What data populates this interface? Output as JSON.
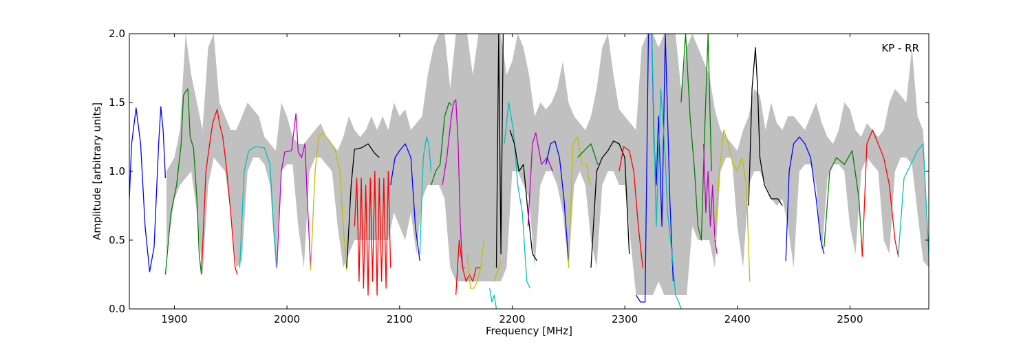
{
  "chart_data": {
    "type": "line",
    "annotation": "KP - RR",
    "xlabel": "Frequency [MHz]",
    "ylabel": "Amplitude [arbitrary units]",
    "xlim": [
      1860,
      2570
    ],
    "ylim": [
      0.0,
      2.0
    ],
    "xticks": [
      1900,
      2000,
      2100,
      2200,
      2300,
      2400,
      2500
    ],
    "xtick_labels": [
      "1900",
      "2000",
      "2100",
      "2200",
      "2300",
      "2400",
      "2500"
    ],
    "yticks": [
      0.0,
      0.5,
      1.0,
      1.5,
      2.0
    ],
    "ytick_labels": [
      "0.0",
      "0.5",
      "1.0",
      "1.5",
      "2.0"
    ],
    "grid": false,
    "envelope_color": "#c0c0c0",
    "envelope": {
      "x": [
        1893,
        1900,
        1905,
        1910,
        1915,
        1920,
        1925,
        1930,
        1935,
        1940,
        1945,
        1950,
        1955,
        1960,
        1965,
        1970,
        1975,
        1980,
        1985,
        1990,
        1995,
        2000,
        2005,
        2010,
        2015,
        2020,
        2025,
        2030,
        2035,
        2040,
        2045,
        2050,
        2055,
        2060,
        2065,
        2070,
        2075,
        2080,
        2085,
        2090,
        2095,
        2100,
        2105,
        2110,
        2115,
        2120,
        2125,
        2130,
        2135,
        2140,
        2145,
        2150,
        2155,
        2160,
        2165,
        2170,
        2175,
        2180,
        2185,
        2190,
        2195,
        2200,
        2205,
        2210,
        2215,
        2220,
        2225,
        2230,
        2235,
        2240,
        2245,
        2250,
        2255,
        2260,
        2265,
        2270,
        2275,
        2280,
        2285,
        2290,
        2295,
        2300,
        2305,
        2310,
        2315,
        2320,
        2325,
        2330,
        2335,
        2340,
        2345,
        2350,
        2355,
        2360,
        2365,
        2370,
        2375,
        2380,
        2385,
        2390,
        2395,
        2400,
        2405,
        2410,
        2415,
        2420,
        2425,
        2430,
        2435,
        2440,
        2445,
        2450,
        2455,
        2460,
        2465,
        2470,
        2475,
        2480,
        2485,
        2490,
        2495,
        2500,
        2505,
        2510,
        2515,
        2520,
        2525,
        2530,
        2535,
        2540,
        2545,
        2550,
        2555,
        2560,
        2565,
        2570
      ],
      "upper": [
        1.0,
        1.1,
        1.3,
        2.0,
        1.7,
        1.5,
        1.3,
        1.9,
        2.0,
        1.5,
        1.4,
        1.3,
        1.3,
        1.4,
        1.5,
        1.45,
        1.4,
        1.25,
        1.2,
        1.15,
        1.5,
        1.4,
        1.25,
        1.2,
        1.2,
        1.25,
        1.3,
        1.35,
        1.25,
        1.2,
        1.15,
        1.25,
        1.4,
        1.3,
        1.25,
        1.3,
        1.4,
        1.3,
        1.4,
        1.3,
        1.5,
        1.4,
        1.45,
        1.3,
        1.35,
        1.4,
        1.7,
        1.9,
        2.0,
        2.0,
        1.6,
        2.0,
        2.0,
        2.0,
        1.7,
        2.0,
        2.0,
        2.0,
        2.0,
        2.0,
        1.7,
        1.8,
        2.0,
        1.9,
        1.7,
        1.4,
        1.5,
        1.45,
        1.5,
        1.6,
        1.8,
        1.5,
        1.4,
        1.35,
        1.3,
        1.4,
        1.6,
        1.9,
        2.0,
        1.7,
        1.45,
        1.4,
        1.35,
        1.3,
        1.9,
        2.0,
        2.0,
        1.9,
        2.0,
        2.0,
        2.0,
        1.6,
        1.9,
        2.0,
        1.9,
        1.8,
        1.7,
        1.45,
        1.3,
        1.25,
        1.2,
        1.15,
        1.3,
        1.4,
        1.6,
        1.55,
        1.3,
        1.5,
        1.35,
        1.3,
        1.4,
        1.4,
        1.35,
        1.3,
        1.4,
        1.5,
        1.35,
        1.25,
        1.2,
        1.3,
        1.5,
        1.45,
        1.3,
        1.25,
        1.35,
        1.3,
        1.25,
        1.3,
        1.5,
        1.6,
        1.55,
        1.5,
        1.9,
        1.4,
        1.3,
        0.4
      ],
      "lower": [
        0.4,
        0.8,
        0.9,
        0.95,
        1.0,
        0.7,
        0.25,
        0.9,
        1.1,
        1.05,
        1.0,
        0.7,
        0.3,
        0.35,
        1.0,
        1.1,
        1.1,
        1.05,
        0.9,
        0.3,
        1.0,
        1.05,
        1.05,
        0.6,
        0.3,
        1.0,
        1.1,
        1.1,
        1.05,
        1.0,
        0.6,
        0.3,
        0.4,
        0.5,
        0.5,
        0.5,
        0.5,
        0.5,
        0.5,
        0.5,
        0.7,
        0.6,
        0.5,
        0.7,
        0.4,
        0.8,
        0.9,
        0.9,
        0.9,
        0.8,
        0.3,
        0.2,
        0.2,
        0.2,
        0.2,
        0.2,
        0.2,
        0.2,
        0.2,
        0.2,
        0.3,
        1.0,
        1.0,
        0.9,
        0.8,
        0.3,
        0.9,
        1.0,
        1.0,
        0.9,
        0.7,
        0.3,
        0.9,
        1.0,
        0.9,
        0.5,
        0.3,
        0.9,
        1.0,
        1.0,
        0.9,
        0.9,
        0.5,
        0.1,
        0.1,
        0.1,
        0.1,
        0.2,
        0.1,
        0.1,
        0.1,
        0.1,
        0.1,
        0.6,
        0.5,
        0.5,
        0.5,
        0.3,
        1.0,
        1.1,
        1.1,
        0.6,
        0.3,
        0.9,
        1.0,
        1.0,
        0.9,
        0.8,
        0.75,
        0.8,
        0.6,
        0.3,
        1.0,
        1.05,
        1.05,
        0.9,
        0.4,
        0.95,
        1.05,
        1.05,
        1.0,
        0.6,
        0.4,
        1.0,
        1.1,
        1.05,
        1.0,
        0.5,
        0.4,
        1.0,
        1.1,
        1.1,
        1.05,
        0.7,
        0.35,
        0.3
      ]
    },
    "series": [
      {
        "color": "#0000ff",
        "x": [
          1860,
          1862,
          1866,
          1870,
          1874,
          1878,
          1882,
          1886,
          1888,
          1890,
          1892
        ],
        "y": [
          0.8,
          1.2,
          1.46,
          1.2,
          0.6,
          0.27,
          0.45,
          1.2,
          1.47,
          1.3,
          0.95
        ]
      },
      {
        "color": "#008000",
        "x": [
          1892,
          1897,
          1902,
          1906,
          1908,
          1910,
          1912,
          1914,
          1917,
          1920,
          1922,
          1924
        ],
        "y": [
          0.25,
          0.7,
          0.9,
          1.2,
          1.55,
          1.58,
          1.6,
          1.25,
          1.17,
          0.8,
          0.4,
          0.25
        ]
      },
      {
        "color": "#ff0000",
        "x": [
          1924,
          1928,
          1931,
          1934,
          1936,
          1938,
          1940,
          1943,
          1946,
          1950,
          1954,
          1956
        ],
        "y": [
          0.25,
          1.0,
          1.18,
          1.35,
          1.4,
          1.45,
          1.35,
          1.25,
          1.05,
          0.7,
          0.3,
          0.25
        ]
      },
      {
        "color": "#00bfbf",
        "x": [
          1958,
          1962,
          1966,
          1972,
          1980,
          1985,
          1988,
          1991
        ],
        "y": [
          0.3,
          1.0,
          1.15,
          1.18,
          1.17,
          1.05,
          0.6,
          0.3
        ]
      },
      {
        "color": "#bf00bf",
        "x": [
          1991,
          1995,
          1998,
          2004,
          2008,
          2010,
          2013,
          2016,
          2018,
          2021
        ],
        "y": [
          0.3,
          1.0,
          1.14,
          1.15,
          1.42,
          1.14,
          1.1,
          1.2,
          0.8,
          0.3
        ]
      },
      {
        "color": "#bfbf00",
        "x": [
          2021,
          2025,
          2028,
          2032,
          2038,
          2043,
          2047,
          2050,
          2053
        ],
        "y": [
          0.28,
          1.0,
          1.25,
          1.28,
          1.22,
          1.15,
          1.0,
          0.6,
          0.28
        ]
      },
      {
        "color": "#000000",
        "x": [
          2053,
          2057,
          2060,
          2066,
          2072,
          2078,
          2082
        ],
        "y": [
          0.3,
          0.9,
          1.16,
          1.17,
          1.2,
          1.13,
          1.1
        ]
      },
      {
        "color": "#ff0000",
        "x": [
          2060,
          2062,
          2064,
          2066,
          2068,
          2070,
          2072,
          2074,
          2076,
          2078,
          2080,
          2082,
          2084,
          2086,
          2088,
          2090,
          2092
        ],
        "y": [
          0.6,
          0.95,
          0.2,
          0.95,
          0.15,
          0.9,
          0.1,
          0.95,
          0.2,
          1.0,
          0.1,
          0.95,
          0.2,
          0.95,
          0.15,
          1.0,
          0.3
        ]
      },
      {
        "color": "#0000ff",
        "x": [
          2092,
          2096,
          2100,
          2105,
          2110,
          2114,
          2118
        ],
        "y": [
          0.9,
          1.1,
          1.15,
          1.2,
          1.1,
          0.6,
          0.35
        ]
      },
      {
        "color": "#00bfbf",
        "x": [
          2118,
          2121,
          2124,
          2126,
          2128
        ],
        "y": [
          0.4,
          1.1,
          1.25,
          1.2,
          1.0
        ]
      },
      {
        "color": "#008000",
        "x": [
          2128,
          2132,
          2136,
          2140,
          2144,
          2146
        ],
        "y": [
          0.9,
          1.0,
          1.05,
          1.4,
          1.5,
          1.48
        ]
      },
      {
        "color": "#bf00bf",
        "x": [
          2138,
          2142,
          2146,
          2148,
          2150,
          2152,
          2154,
          2156,
          2158
        ],
        "y": [
          0.9,
          1.1,
          1.4,
          1.5,
          1.52,
          1.2,
          0.6,
          0.3,
          0.3
        ]
      },
      {
        "color": "#ff0000",
        "x": [
          2150,
          2153,
          2156,
          2159,
          2162,
          2165,
          2168,
          2172
        ],
        "y": [
          0.1,
          0.5,
          0.3,
          0.2,
          0.25,
          0.2,
          0.3,
          0.3
        ]
      },
      {
        "color": "#bfbf00",
        "x": [
          2160,
          2163,
          2166,
          2169,
          2172,
          2175
        ],
        "y": [
          0.4,
          0.15,
          0.15,
          0.2,
          0.3,
          0.5
        ]
      },
      {
        "color": "#00bfbf",
        "x": [
          2180,
          2182,
          2184,
          2186
        ],
        "y": [
          0.15,
          0.05,
          0.1,
          0.0
        ]
      },
      {
        "color": "#bfbf00",
        "x": [
          2184,
          2186,
          2188,
          2190
        ],
        "y": [
          0.2,
          0.25,
          0.3,
          0.35
        ]
      },
      {
        "color": "#000000",
        "x": [
          2186,
          2188,
          2190,
          2192
        ],
        "y": [
          0.3,
          2.0,
          0.4,
          2.0
        ]
      },
      {
        "color": "#00bfbf",
        "x": [
          2193,
          2197,
          2201,
          2205,
          2209,
          2213,
          2216
        ],
        "y": [
          1.2,
          1.5,
          1.3,
          0.9,
          0.7,
          0.2,
          0.15
        ]
      },
      {
        "color": "#000000",
        "x": [
          2198,
          2202,
          2206,
          2210,
          2214,
          2218,
          2222
        ],
        "y": [
          1.3,
          1.2,
          1.0,
          1.05,
          0.7,
          0.4,
          0.35
        ]
      },
      {
        "color": "#bf00bf",
        "x": [
          2214,
          2218,
          2221,
          2226,
          2231,
          2236
        ],
        "y": [
          0.6,
          1.2,
          1.28,
          1.05,
          1.1,
          1.0
        ]
      },
      {
        "color": "#0000ff",
        "x": [
          2230,
          2234,
          2238,
          2242,
          2246,
          2250
        ],
        "y": [
          1.05,
          1.2,
          1.22,
          1.1,
          0.8,
          0.35
        ]
      },
      {
        "color": "#bfbf00",
        "x": [
          2250,
          2254,
          2258,
          2262,
          2266,
          2269
        ],
        "y": [
          0.3,
          1.2,
          1.25,
          1.05,
          1.05,
          0.9
        ]
      },
      {
        "color": "#008000",
        "x": [
          2258,
          2264,
          2270,
          2276
        ],
        "y": [
          1.1,
          1.15,
          1.2,
          1.05
        ]
      },
      {
        "color": "#000000",
        "x": [
          2270,
          2275,
          2280,
          2285,
          2290,
          2295,
          2300,
          2304
        ],
        "y": [
          0.3,
          1.0,
          1.1,
          1.15,
          1.22,
          1.2,
          1.1,
          0.4
        ]
      },
      {
        "color": "#ff0000",
        "x": [
          2295,
          2299,
          2304,
          2308,
          2312,
          2316
        ],
        "y": [
          1.0,
          1.18,
          1.15,
          1.0,
          0.6,
          0.3
        ]
      },
      {
        "color": "#0000ff",
        "x": [
          2310,
          2314,
          2318,
          2321,
          2324,
          2326,
          2328,
          2330,
          2333,
          2336,
          2340,
          2343
        ],
        "y": [
          0.1,
          0.05,
          0.05,
          2.0,
          2.0,
          1.2,
          0.9,
          1.4,
          0.6,
          2.0,
          0.8,
          0.2
        ]
      },
      {
        "color": "#00bfbf",
        "x": [
          2324,
          2328,
          2332,
          2336,
          2338,
          2342,
          2345,
          2348,
          2350
        ],
        "y": [
          2.0,
          0.6,
          1.6,
          1.1,
          0.7,
          0.4,
          0.1,
          0.05,
          0.0
        ]
      },
      {
        "color": "#008000",
        "x": [
          2350,
          2354,
          2358,
          2362,
          2365,
          2368,
          2371,
          2374,
          2377
        ],
        "y": [
          1.5,
          2.0,
          1.4,
          1.0,
          0.6,
          0.5,
          1.3,
          2.0,
          1.0
        ]
      },
      {
        "color": "#bf00bf",
        "x": [
          2370,
          2372,
          2374,
          2376,
          2378,
          2380,
          2382
        ],
        "y": [
          1.2,
          0.7,
          1.0,
          0.6,
          0.9,
          0.5,
          0.4
        ]
      },
      {
        "color": "#bfbf00",
        "x": [
          2380,
          2384,
          2388,
          2392,
          2396,
          2400,
          2404,
          2408,
          2411
        ],
        "y": [
          0.5,
          1.0,
          1.3,
          1.2,
          1.05,
          1.0,
          1.1,
          0.9,
          0.2
        ]
      },
      {
        "color": "#000000",
        "x": [
          2410,
          2413,
          2416,
          2418,
          2420,
          2424,
          2430,
          2436,
          2440
        ],
        "y": [
          0.75,
          1.6,
          1.9,
          1.6,
          1.1,
          0.9,
          0.8,
          0.8,
          0.75
        ]
      },
      {
        "color": "#0000ff",
        "x": [
          2443,
          2446,
          2450,
          2455,
          2460,
          2465,
          2470,
          2474,
          2477
        ],
        "y": [
          0.35,
          1.0,
          1.2,
          1.25,
          1.2,
          1.1,
          0.8,
          0.5,
          0.4
        ]
      },
      {
        "color": "#008000",
        "x": [
          2477,
          2482,
          2488,
          2495,
          2502,
          2508,
          2511
        ],
        "y": [
          0.45,
          1.0,
          1.1,
          1.05,
          1.15,
          0.8,
          0.38
        ]
      },
      {
        "color": "#ff0000",
        "x": [
          2511,
          2515,
          2520,
          2525,
          2530,
          2535,
          2540,
          2543
        ],
        "y": [
          0.38,
          1.2,
          1.3,
          1.2,
          1.1,
          0.9,
          0.5,
          0.38
        ]
      },
      {
        "color": "#00bfbf",
        "x": [
          2543,
          2548,
          2554,
          2560,
          2565,
          2570
        ],
        "y": [
          0.4,
          0.95,
          1.05,
          1.15,
          1.2,
          0.4
        ]
      }
    ]
  }
}
